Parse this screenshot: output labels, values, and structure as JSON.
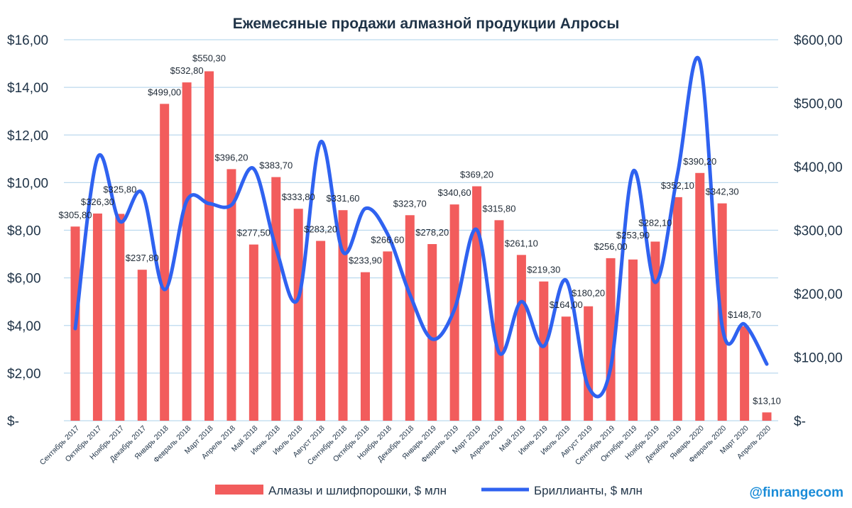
{
  "chart_data": {
    "type": "bar+line",
    "title": "Ежемесяные продажи алмазной продукции Алросы",
    "categories": [
      "Сентябрь 2017",
      "Октябрь 2017",
      "Ноябрь 2017",
      "Декабрь 2017",
      "Январь 2018",
      "Февраль 2018",
      "Март 2018",
      "Апрель 2018",
      "Май 2018",
      "Июнь 2018",
      "Июль 2018",
      "Август 2018",
      "Сентябрь 2018",
      "Октябрь 2018",
      "Ноябрь 2018",
      "Декабрь 2018",
      "Январь 2019",
      "Февраль 2019",
      "Март 2019",
      "Апрель 2019",
      "Май 2019",
      "Июнь 2019",
      "Июль 2019",
      "Август 2019",
      "Сентябрь 2019",
      "Октябрь 2019",
      "Ноябрь 2019",
      "Декабрь 2019",
      "Январь 2020",
      "Февраль 2020",
      "Март 2020",
      "Апрель 2020"
    ],
    "left_axis": {
      "ylim": [
        0,
        16
      ],
      "ticks": [
        "$-",
        "$2,00",
        "$4,00",
        "$6,00",
        "$8,00",
        "$10,00",
        "$12,00",
        "$14,00",
        "$16,00"
      ]
    },
    "right_axis": {
      "ylim": [
        0,
        600
      ],
      "ticks": [
        "$-",
        "$100,00",
        "$200,00",
        "$300,00",
        "$400,00",
        "$500,00",
        "$600,00"
      ]
    },
    "grid": true,
    "legend_placement": "bottom",
    "series": [
      {
        "name": "Алмазы и шлифпорошки, $ млн",
        "type": "bar",
        "axis": "right",
        "color": "#f25c5c",
        "values": [
          305.8,
          326.3,
          325.8,
          237.8,
          499.0,
          532.8,
          550.3,
          396.2,
          277.5,
          383.7,
          333.8,
          283.2,
          331.6,
          233.9,
          266.6,
          323.7,
          278.2,
          340.6,
          369.2,
          315.8,
          261.1,
          219.3,
          164.0,
          180.2,
          256.0,
          253.9,
          282.1,
          352.1,
          390.2,
          342.3,
          148.7,
          13.1
        ],
        "labels": [
          "$305,80",
          "$326,30",
          "$325,80",
          "$237,80",
          "$499,00",
          "$532,80",
          "$550,30",
          "$396,20",
          "$277,50",
          "$383,70",
          "$333,80",
          "$283,20",
          "$331,60",
          "$233,90",
          "$266,60",
          "$323,70",
          "$278,20",
          "$340,60",
          "$369,20",
          "$315,80",
          "$261,10",
          "$219,30",
          "$164,00",
          "$180,20",
          "$256,00",
          "$253,90",
          "$282,10",
          "$352,10",
          "$390,20",
          "$342,30",
          "$148,70",
          "$13,10"
        ]
      },
      {
        "name": "Бриллианты, $ млн",
        "type": "line",
        "axis": "left",
        "color": "#2f62f0",
        "values": [
          3.87,
          11.05,
          8.37,
          9.56,
          5.51,
          9.24,
          9.12,
          9.06,
          10.58,
          7.24,
          5.15,
          11.71,
          7.09,
          8.91,
          7.84,
          5.3,
          3.43,
          4.68,
          8.02,
          2.86,
          5.0,
          3.13,
          5.9,
          1.43,
          2.23,
          10.46,
          5.81,
          10.37,
          15.08,
          3.96,
          4.05,
          2.38
        ]
      }
    ]
  },
  "watermark": "@finrangecom"
}
